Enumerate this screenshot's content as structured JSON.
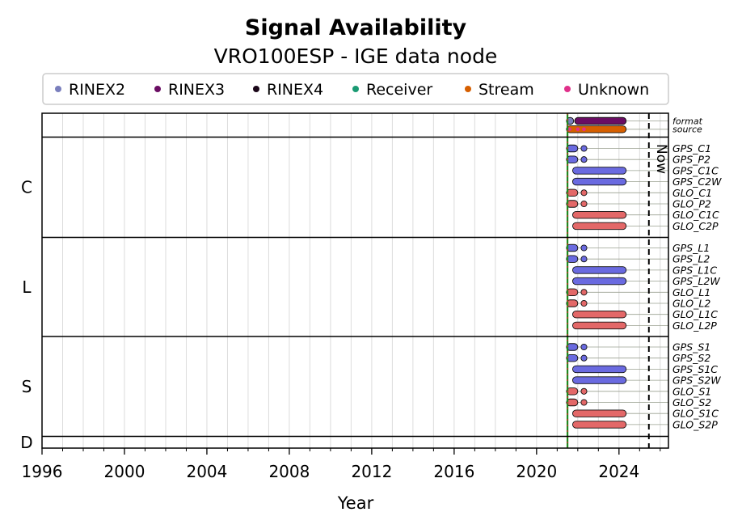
{
  "chart_data": {
    "type": "timeline",
    "title": "Signal Availability",
    "subtitle": "VRO100ESP - IGE data node",
    "xlabel": "Year",
    "xlim": [
      1996,
      2026.4
    ],
    "xticks": [
      1996,
      2000,
      2004,
      2008,
      2012,
      2016,
      2020,
      2024
    ],
    "grid": "vertical yearly",
    "legend": {
      "placement": "top",
      "entries": [
        {
          "name": "RINEX2",
          "color": "#7a7fbd"
        },
        {
          "name": "RINEX3",
          "color": "#6a0d63"
        },
        {
          "name": "RINEX4",
          "color": "#1a0618"
        },
        {
          "name": "Receiver",
          "color": "#1a9a73"
        },
        {
          "name": "Stream",
          "color": "#d65f00"
        },
        {
          "name": "Unknown",
          "color": "#e0308a"
        }
      ]
    },
    "reference_line": {
      "x": 2021.5,
      "color": "#1f8a1f",
      "dash_color": "#d62728"
    },
    "now": {
      "label": "Now",
      "x": 2025.45
    },
    "series_colors": {
      "GPS": "#6a6ae0",
      "GLO": "#e36868"
    },
    "groups": [
      {
        "name": "",
        "rows": [
          {
            "label": "format",
            "bars": [
              [
                2021.45,
                2021.8,
                "#7a7fbd"
              ],
              [
                2021.85,
                2024.35,
                "#6a0d63"
              ]
            ]
          },
          {
            "label": "source",
            "bars": [
              [
                2021.45,
                2024.35,
                "#d65f00"
              ]
            ],
            "dots": [
              [
                2021.6,
                "#e0308a"
              ],
              [
                2022.0,
                "#e0308a"
              ],
              [
                2022.3,
                "#e0308a"
              ]
            ]
          }
        ]
      },
      {
        "name": "C",
        "rows": [
          {
            "label": "GPS_C1",
            "sys": "GPS",
            "bars": [
              [
                2021.45,
                2022.0
              ]
            ],
            "dots": [
              2022.3
            ]
          },
          {
            "label": "GPS_P2",
            "sys": "GPS",
            "bars": [
              [
                2021.45,
                2022.0
              ]
            ],
            "dots": [
              2022.3
            ]
          },
          {
            "label": "GPS_C1C",
            "sys": "GPS",
            "bars": [
              [
                2021.75,
                2024.35
              ]
            ]
          },
          {
            "label": "GPS_C2W",
            "sys": "GPS",
            "bars": [
              [
                2021.75,
                2024.35
              ]
            ]
          },
          {
            "label": "GLO_C1",
            "sys": "GLO",
            "bars": [
              [
                2021.45,
                2022.0
              ]
            ],
            "dots": [
              2022.3
            ]
          },
          {
            "label": "GLO_P2",
            "sys": "GLO",
            "bars": [
              [
                2021.45,
                2022.0
              ]
            ],
            "dots": [
              2022.3
            ]
          },
          {
            "label": "GLO_C1C",
            "sys": "GLO",
            "bars": [
              [
                2021.75,
                2024.35
              ]
            ]
          },
          {
            "label": "GLO_C2P",
            "sys": "GLO",
            "bars": [
              [
                2021.75,
                2024.35
              ]
            ]
          }
        ]
      },
      {
        "name": "L",
        "rows": [
          {
            "label": "GPS_L1",
            "sys": "GPS",
            "bars": [
              [
                2021.45,
                2022.0
              ]
            ],
            "dots": [
              2022.3
            ]
          },
          {
            "label": "GPS_L2",
            "sys": "GPS",
            "bars": [
              [
                2021.45,
                2022.0
              ]
            ],
            "dots": [
              2022.3
            ]
          },
          {
            "label": "GPS_L1C",
            "sys": "GPS",
            "bars": [
              [
                2021.75,
                2024.35
              ]
            ]
          },
          {
            "label": "GPS_L2W",
            "sys": "GPS",
            "bars": [
              [
                2021.75,
                2024.35
              ]
            ]
          },
          {
            "label": "GLO_L1",
            "sys": "GLO",
            "bars": [
              [
                2021.45,
                2022.0
              ]
            ],
            "dots": [
              2022.3
            ]
          },
          {
            "label": "GLO_L2",
            "sys": "GLO",
            "bars": [
              [
                2021.45,
                2022.0
              ]
            ],
            "dots": [
              2022.3
            ]
          },
          {
            "label": "GLO_L1C",
            "sys": "GLO",
            "bars": [
              [
                2021.75,
                2024.35
              ]
            ]
          },
          {
            "label": "GLO_L2P",
            "sys": "GLO",
            "bars": [
              [
                2021.75,
                2024.35
              ]
            ]
          }
        ]
      },
      {
        "name": "S",
        "rows": [
          {
            "label": "GPS_S1",
            "sys": "GPS",
            "bars": [
              [
                2021.45,
                2022.0
              ]
            ],
            "dots": [
              2022.3
            ]
          },
          {
            "label": "GPS_S2",
            "sys": "GPS",
            "bars": [
              [
                2021.45,
                2022.0
              ]
            ],
            "dots": [
              2022.3
            ]
          },
          {
            "label": "GPS_S1C",
            "sys": "GPS",
            "bars": [
              [
                2021.75,
                2024.35
              ]
            ]
          },
          {
            "label": "GPS_S2W",
            "sys": "GPS",
            "bars": [
              [
                2021.75,
                2024.35
              ]
            ]
          },
          {
            "label": "GLO_S1",
            "sys": "GLO",
            "bars": [
              [
                2021.45,
                2022.0
              ]
            ],
            "dots": [
              2022.3
            ]
          },
          {
            "label": "GLO_S2",
            "sys": "GLO",
            "bars": [
              [
                2021.45,
                2022.0
              ]
            ],
            "dots": [
              2022.3
            ]
          },
          {
            "label": "GLO_S1C",
            "sys": "GLO",
            "bars": [
              [
                2021.75,
                2024.35
              ]
            ]
          },
          {
            "label": "GLO_S2P",
            "sys": "GLO",
            "bars": [
              [
                2021.75,
                2024.35
              ]
            ]
          }
        ]
      },
      {
        "name": "D",
        "rows": []
      }
    ]
  }
}
